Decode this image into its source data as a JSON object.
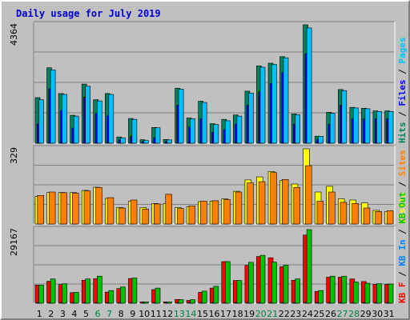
{
  "title": "Daily usage for July 2019",
  "colors": {
    "hits": "#00805c",
    "files": "#0000ff",
    "pages": "#00c0ff",
    "visits": "#ffff00",
    "sites": "#ff8000",
    "kb_f": "#ff0000",
    "kb_in": "#0080ff",
    "kb_out": "#00c000",
    "weekday_label": "#000000",
    "weekend_label": "#008040"
  },
  "chart_data": [
    {
      "type": "bar",
      "panel": "top",
      "max_label": "4364",
      "ylim": [
        0,
        4364
      ],
      "categories": [
        "1",
        "2",
        "3",
        "4",
        "5",
        "6",
        "7",
        "8",
        "9",
        "10",
        "11",
        "12",
        "13",
        "14",
        "15",
        "16",
        "17",
        "18",
        "19",
        "20",
        "21",
        "22",
        "23",
        "24",
        "25",
        "26",
        "27",
        "28",
        "29",
        "30",
        "31"
      ],
      "weekend_days": [
        "6",
        "7",
        "13",
        "14",
        "20",
        "21",
        "27",
        "28"
      ],
      "legend": [
        "Hits",
        "Files",
        "Pages"
      ],
      "series": [
        {
          "name": "Hits",
          "key": "hits",
          "values": [
            1680,
            2780,
            1830,
            1030,
            2180,
            1600,
            1830,
            230,
            910,
            130,
            580,
            140,
            2030,
            930,
            1550,
            720,
            880,
            1040,
            1920,
            2850,
            2950,
            3190,
            1080,
            4364,
            260,
            1140,
            1980,
            1320,
            1290,
            1190,
            1190
          ]
        },
        {
          "name": "Files",
          "key": "files",
          "values": [
            700,
            2000,
            1200,
            560,
            1700,
            1100,
            1000,
            120,
            260,
            60,
            200,
            60,
            1400,
            600,
            900,
            400,
            500,
            700,
            1400,
            1900,
            2200,
            2600,
            700,
            3300,
            150,
            700,
            1400,
            900,
            900,
            900,
            900
          ]
        },
        {
          "name": "Pages",
          "key": "pages",
          "values": [
            1600,
            2700,
            1800,
            1000,
            2100,
            1560,
            1800,
            200,
            880,
            100,
            570,
            120,
            1990,
            900,
            1500,
            690,
            830,
            1000,
            1850,
            2800,
            2900,
            3150,
            1050,
            4250,
            250,
            1100,
            1940,
            1300,
            1270,
            1170,
            1170
          ]
        }
      ]
    },
    {
      "type": "bar",
      "panel": "middle",
      "max_label": "329",
      "ylim": [
        0,
        329
      ],
      "categories": [
        "1",
        "2",
        "3",
        "4",
        "5",
        "6",
        "7",
        "8",
        "9",
        "10",
        "11",
        "12",
        "13",
        "14",
        "15",
        "16",
        "17",
        "18",
        "19",
        "20",
        "21",
        "22",
        "23",
        "24",
        "25",
        "26",
        "27",
        "28",
        "29",
        "30",
        "31"
      ],
      "legend": [
        "Visits",
        "Sites"
      ],
      "series": [
        {
          "name": "Visits",
          "key": "visits",
          "values": [
            120,
            138,
            138,
            138,
            147,
            161,
            112,
            72,
            100,
            72,
            90,
            90,
            72,
            76,
            98,
            100,
            110,
            143,
            193,
            206,
            230,
            190,
            175,
            329,
            140,
            165,
            110,
            105,
            92,
            60,
            55
          ]
        },
        {
          "name": "Sites",
          "key": "sites",
          "values": [
            125,
            140,
            137,
            135,
            145,
            160,
            115,
            70,
            105,
            65,
            88,
            130,
            68,
            79,
            100,
            102,
            107,
            140,
            180,
            185,
            225,
            195,
            160,
            255,
            100,
            140,
            95,
            90,
            70,
            55,
            58
          ]
        }
      ]
    },
    {
      "type": "bar",
      "panel": "bottom",
      "max_label": "29167",
      "ylim": [
        0,
        29167
      ],
      "categories": [
        "1",
        "2",
        "3",
        "4",
        "5",
        "6",
        "7",
        "8",
        "9",
        "10",
        "11",
        "12",
        "13",
        "14",
        "15",
        "16",
        "17",
        "18",
        "19",
        "20",
        "21",
        "22",
        "23",
        "24",
        "25",
        "26",
        "27",
        "28",
        "29",
        "30",
        "31"
      ],
      "legend": [
        "KB F",
        "KB In",
        "KB Out"
      ],
      "series": [
        {
          "name": "KB F",
          "key": "kb_f",
          "values": [
            7200,
            8700,
            7400,
            4200,
            9100,
            9700,
            4400,
            5800,
            9800,
            500,
            5400,
            500,
            1500,
            1100,
            4300,
            6000,
            16500,
            9000,
            15000,
            18500,
            18000,
            14500,
            9100,
            27000,
            4700,
            10300,
            10300,
            9600,
            8600,
            7500,
            7500
          ]
        },
        {
          "name": "KB In",
          "key": "kb_in",
          "values": [
            200,
            200,
            200,
            150,
            200,
            200,
            150,
            100,
            200,
            50,
            150,
            50,
            100,
            80,
            150,
            150,
            300,
            200,
            300,
            350,
            300,
            300,
            200,
            400,
            100,
            200,
            200,
            200,
            150,
            150,
            150
          ]
        },
        {
          "name": "KB Out",
          "key": "kb_out",
          "values": [
            7200,
            9600,
            7700,
            4300,
            9600,
            10700,
            5000,
            6400,
            10000,
            500,
            6000,
            500,
            1400,
            1400,
            4800,
            6700,
            16500,
            9000,
            16200,
            19000,
            16300,
            15100,
            9600,
            29167,
            5000,
            10700,
            10700,
            8400,
            7900,
            7700,
            7600
          ]
        }
      ]
    }
  ]
}
